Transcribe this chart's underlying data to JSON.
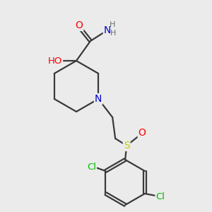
{
  "bg_color": "#ebebeb",
  "bond_color": "#3a3a3a",
  "atom_colors": {
    "O": "#ff0000",
    "N": "#0000cc",
    "S": "#cccc00",
    "Cl": "#00bb00",
    "H": "#607070",
    "C": "#3a3a3a"
  },
  "figsize": [
    3.0,
    3.0
  ],
  "dpi": 100
}
